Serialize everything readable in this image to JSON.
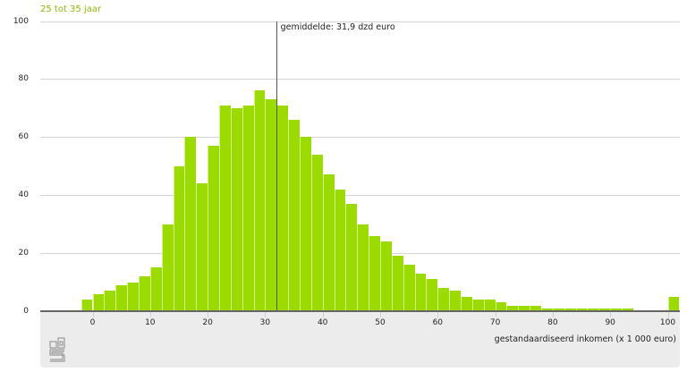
{
  "chart_data": {
    "type": "bar",
    "title": "",
    "subtitle": "25 tot 35 jaar",
    "xlabel": "gestandaardiseerd inkomen (x 1 000 euro)",
    "ylabel": "",
    "ylim": [
      0,
      100
    ],
    "yticks": [
      0,
      20,
      40,
      60,
      80,
      100
    ],
    "xticks": [
      0,
      10,
      20,
      30,
      40,
      50,
      60,
      70,
      80,
      90,
      100
    ],
    "grid": true,
    "bin_width": 2,
    "bins_start": [
      -2,
      0,
      2,
      4,
      6,
      8,
      10,
      12,
      14,
      16,
      18,
      20,
      22,
      24,
      26,
      28,
      30,
      32,
      34,
      36,
      38,
      40,
      42,
      44,
      46,
      48,
      50,
      52,
      54,
      56,
      58,
      60,
      62,
      64,
      66,
      68,
      70,
      72,
      74,
      76,
      78,
      80,
      82,
      84,
      86,
      88,
      90,
      92,
      100
    ],
    "values": [
      4,
      6,
      7,
      9,
      10,
      12,
      15,
      30,
      50,
      60,
      44,
      57,
      71,
      70,
      71,
      76,
      73,
      71,
      66,
      60,
      54,
      47,
      42,
      37,
      30,
      26,
      24,
      19,
      16,
      13,
      11,
      8,
      7,
      5,
      4,
      4,
      3,
      2,
      2,
      2,
      1,
      1,
      1,
      1,
      1,
      1,
      1,
      1,
      5
    ],
    "annotations": [
      {
        "type": "vline",
        "x": 31.9,
        "label": "gemiddelde: 31,9 dzd euro"
      }
    ],
    "bar_color": "#9cdb00"
  },
  "ui": {
    "subtitle": "25 tot 35 jaar",
    "mean_label": "gemiddelde: 31,9 dzd euro",
    "x_title": "gestandaardiseerd inkomen (x 1 000 euro)",
    "y_labels": [
      "100",
      "80",
      "60",
      "40",
      "20",
      "0"
    ],
    "x_labels": [
      "0",
      "10",
      "20",
      "30",
      "40",
      "50",
      "60",
      "70",
      "80",
      "90",
      "100"
    ],
    "logo": "cbs-logo-icon"
  }
}
